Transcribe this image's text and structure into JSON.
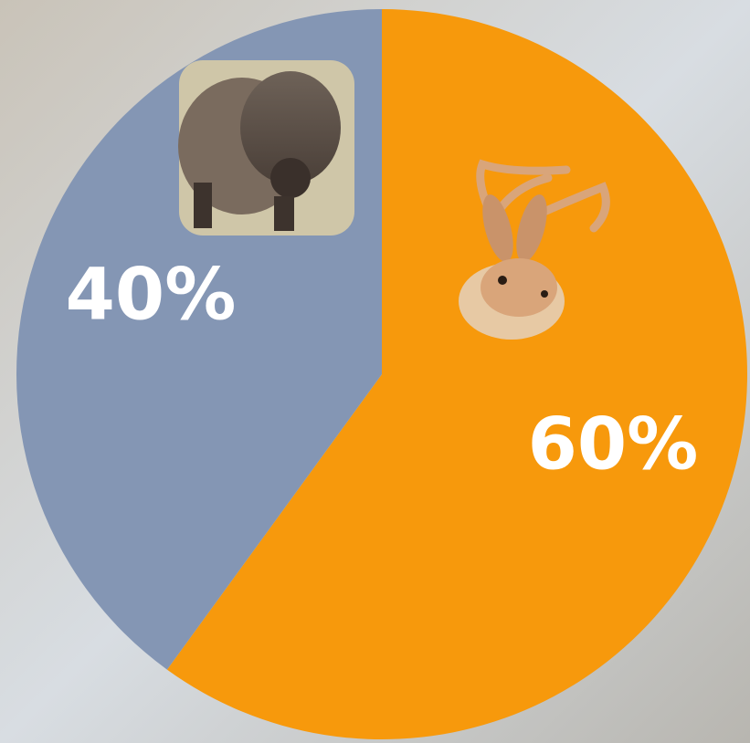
{
  "chart_data": {
    "type": "pie",
    "values": [
      60,
      40
    ],
    "value_labels": [
      "60%",
      "40%"
    ],
    "colors": [
      "#f7990c",
      "#8496b4"
    ],
    "start_angle": 0,
    "direction": "clockwise"
  }
}
